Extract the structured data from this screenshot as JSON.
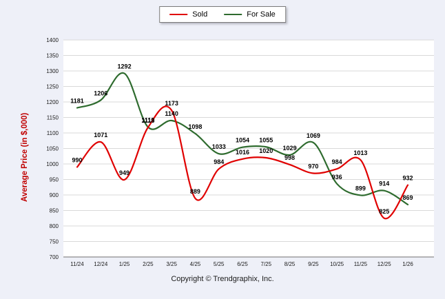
{
  "chart_data": {
    "type": "line",
    "categories": [
      "11/24",
      "12/24",
      "1/25",
      "2/25",
      "3/25",
      "4/25",
      "5/25",
      "6/25",
      "7/25",
      "8/25",
      "9/25",
      "10/25",
      "11/25",
      "12/25",
      "1/26"
    ],
    "series": [
      {
        "name": "Sold",
        "color": "#e00000",
        "values": [
          990,
          1071,
          949,
          1118,
          1173,
          889,
          984,
          1016,
          1020,
          998,
          970,
          984,
          1013,
          825,
          932
        ]
      },
      {
        "name": "For Sale",
        "color": "#2e6b2e",
        "values": [
          1181,
          1206,
          1292,
          1119,
          1140,
          1098,
          1033,
          1054,
          1055,
          1029,
          1069,
          936,
          899,
          914,
          869
        ]
      }
    ],
    "xlabel": "",
    "ylabel": "Average Price (in $,000)",
    "ylim": [
      700,
      1400
    ],
    "ytick_step": 50,
    "grid": true,
    "legend_position": "top-center",
    "curve": "smooth"
  },
  "footer": {
    "copyright": "Copyright © Trendgraphix, Inc."
  },
  "style": {
    "background": "#eef0f8",
    "plot_background": "#ffffff",
    "grid_color": "#d9d9d9",
    "axis_color": "#8a8a8a",
    "tick_color": "#1a1a1a",
    "data_label_color": "#000000",
    "ylabel_color": "#c00000"
  }
}
